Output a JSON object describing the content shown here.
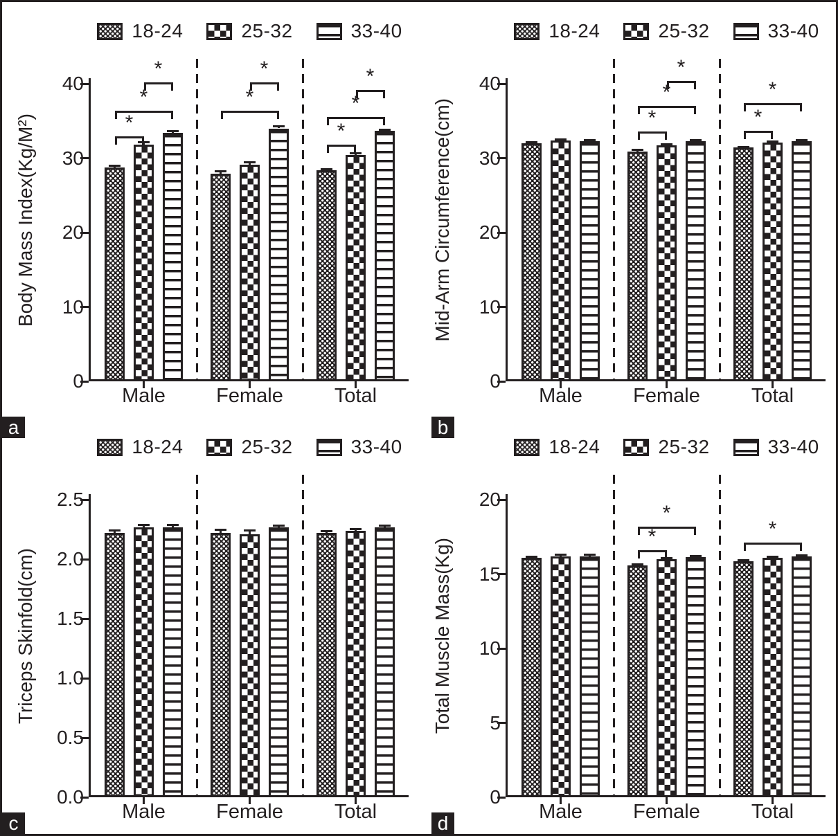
{
  "colors": {
    "ink": "#231f20",
    "background": "#ffffff"
  },
  "figure": {
    "kind": "2x2 grouped bar figure with significance brackets"
  },
  "chart_data": [
    {
      "panel": "a",
      "type": "bar",
      "title": "",
      "ylabel": "Body Mass Index(Kg/M²)",
      "xlabel": "",
      "ylim": [
        0,
        40
      ],
      "yticks": [
        "0",
        "10",
        "20",
        "30",
        "40"
      ],
      "grid": false,
      "legend_position": "top",
      "categories": [
        "Male",
        "Female",
        "Total"
      ],
      "separators": "dashed-between-groups",
      "series": [
        {
          "name": "18-24",
          "pattern": "dots",
          "values": [
            28.7,
            27.9,
            28.4
          ],
          "errors": [
            0.25,
            0.3,
            0.15
          ]
        },
        {
          "name": "25-32",
          "pattern": "checker",
          "values": [
            31.8,
            29.1,
            30.4
          ],
          "errors": [
            0.35,
            0.3,
            0.25
          ]
        },
        {
          "name": "33-40",
          "pattern": "hlines",
          "values": [
            33.4,
            34.0,
            33.7
          ],
          "errors": [
            0.2,
            0.3,
            0.15
          ]
        }
      ],
      "significance": [
        {
          "group": 0,
          "from": 0,
          "to": 1,
          "y": 32.9,
          "label": "*"
        },
        {
          "group": 0,
          "from": 0,
          "to": 2,
          "y": 36.4,
          "label": "*"
        },
        {
          "group": 0,
          "from": 1,
          "to": 2,
          "y": 40.2,
          "label": "*"
        },
        {
          "group": 1,
          "from": 0,
          "to": 2,
          "y": 36.4,
          "label": "*"
        },
        {
          "group": 1,
          "from": 1,
          "to": 2,
          "y": 40.2,
          "label": "*"
        },
        {
          "group": 2,
          "from": 0,
          "to": 1,
          "y": 31.8,
          "label": "*"
        },
        {
          "group": 2,
          "from": 0,
          "to": 2,
          "y": 35.5,
          "label": "*"
        },
        {
          "group": 2,
          "from": 1,
          "to": 2,
          "y": 39.2,
          "label": "*"
        }
      ]
    },
    {
      "panel": "b",
      "type": "bar",
      "title": "",
      "ylabel": "Mid-Arm Circumference(cm)",
      "xlabel": "",
      "ylim": [
        0,
        40
      ],
      "yticks": [
        "0",
        "10",
        "20",
        "30",
        "40"
      ],
      "grid": false,
      "legend_position": "top",
      "categories": [
        "Male",
        "Female",
        "Total"
      ],
      "separators": "dashed-between-groups",
      "series": [
        {
          "name": "18-24",
          "pattern": "dots",
          "values": [
            32.0,
            30.9,
            31.4
          ],
          "errors": [
            0.15,
            0.2,
            0.1
          ]
        },
        {
          "name": "25-32",
          "pattern": "checker",
          "values": [
            32.4,
            31.7,
            32.1
          ],
          "errors": [
            0.12,
            0.15,
            0.1
          ]
        },
        {
          "name": "33-40",
          "pattern": "hlines",
          "values": [
            32.3,
            32.3,
            32.3
          ],
          "errors": [
            0.1,
            0.1,
            0.08
          ]
        }
      ],
      "significance": [
        {
          "group": 1,
          "from": 0,
          "to": 1,
          "y": 33.6,
          "label": "*"
        },
        {
          "group": 1,
          "from": 0,
          "to": 2,
          "y": 37.0,
          "label": "*"
        },
        {
          "group": 1,
          "from": 1,
          "to": 2,
          "y": 40.4,
          "label": "*"
        },
        {
          "group": 2,
          "from": 0,
          "to": 1,
          "y": 33.7,
          "label": "*"
        },
        {
          "group": 2,
          "from": 0,
          "to": 2,
          "y": 37.4,
          "label": "*"
        }
      ]
    },
    {
      "panel": "c",
      "type": "bar",
      "title": "",
      "ylabel": "Triceps Skinfold(cm)",
      "xlabel": "",
      "ylim": [
        0,
        2.5
      ],
      "yticks": [
        "0.0",
        "0.5",
        "1.0",
        "1.5",
        "2.0",
        "2.5"
      ],
      "grid": false,
      "legend_position": "top",
      "categories": [
        "Male",
        "Female",
        "Total"
      ],
      "separators": "dashed-between-groups",
      "series": [
        {
          "name": "18-24",
          "pattern": "dots",
          "values": [
            2.22,
            2.22,
            2.22
          ],
          "errors": [
            0.02,
            0.025,
            0.015
          ]
        },
        {
          "name": "25-32",
          "pattern": "checker",
          "values": [
            2.27,
            2.21,
            2.24
          ],
          "errors": [
            0.015,
            0.03,
            0.015
          ]
        },
        {
          "name": "33-40",
          "pattern": "hlines",
          "values": [
            2.27,
            2.27,
            2.27
          ],
          "errors": [
            0.015,
            0.012,
            0.01
          ]
        }
      ],
      "significance": []
    },
    {
      "panel": "d",
      "type": "bar",
      "title": "",
      "ylabel": "Total Muscle Mass(Kg)",
      "xlabel": "",
      "ylim": [
        0,
        20
      ],
      "yticks": [
        "0",
        "5",
        "10",
        "15",
        "20"
      ],
      "grid": false,
      "legend_position": "top",
      "categories": [
        "Male",
        "Female",
        "Total"
      ],
      "separators": "dashed-between-groups",
      "series": [
        {
          "name": "18-24",
          "pattern": "dots",
          "values": [
            16.1,
            15.6,
            15.85
          ],
          "errors": [
            0.08,
            0.06,
            0.08
          ]
        },
        {
          "name": "25-32",
          "pattern": "checker",
          "values": [
            16.2,
            16.0,
            16.1
          ],
          "errors": [
            0.08,
            0.08,
            0.06
          ]
        },
        {
          "name": "33-40",
          "pattern": "hlines",
          "values": [
            16.2,
            16.15,
            16.2
          ],
          "errors": [
            0.1,
            0.08,
            0.06
          ]
        }
      ],
      "significance": [
        {
          "group": 1,
          "from": 0,
          "to": 1,
          "y": 16.6,
          "label": "*"
        },
        {
          "group": 1,
          "from": 0,
          "to": 2,
          "y": 18.2,
          "label": "*"
        },
        {
          "group": 2,
          "from": 0,
          "to": 2,
          "y": 17.1,
          "label": "*"
        }
      ]
    }
  ]
}
